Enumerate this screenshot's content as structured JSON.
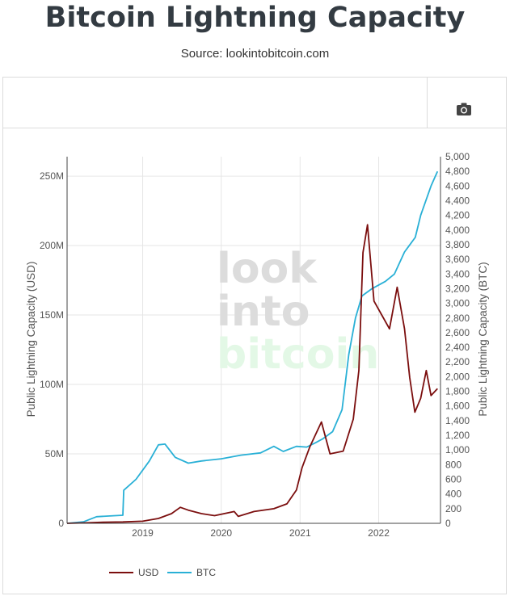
{
  "header": {
    "title": "Bitcoin Lightning Capacity",
    "source": "Source: lookintobitcoin.com"
  },
  "toolbar": {
    "camera_icon": "camera-icon"
  },
  "watermark": {
    "line1": "look",
    "line2": "into",
    "line3": "bitcoin"
  },
  "colors": {
    "usd": "#7b0e0e",
    "btc": "#29b0d6",
    "grid": "#e6e6e6",
    "watermark_grey": "#dcdcdc",
    "watermark_green": "#e3f8e6"
  },
  "chart_data": {
    "type": "line",
    "title": "Bitcoin Lightning Capacity",
    "ylabel": "Public Lightning Capacity (USD)",
    "y2label": "Public Lightning Capacity (BTC)",
    "xlim": [
      "2018-01-15",
      "2022-10-15"
    ],
    "ylim": [
      0,
      264000000
    ],
    "y2lim": [
      0,
      5000
    ],
    "x_ticks": [
      "2019",
      "2020",
      "2021",
      "2022"
    ],
    "y_ticks": [
      {
        "v": 0,
        "t": "0"
      },
      {
        "v": 50000000,
        "t": "50M"
      },
      {
        "v": 100000000,
        "t": "100M"
      },
      {
        "v": 150000000,
        "t": "150M"
      },
      {
        "v": 200000000,
        "t": "200M"
      },
      {
        "v": 250000000,
        "t": "250M"
      }
    ],
    "y2_ticks": [
      0,
      200,
      400,
      600,
      800,
      1000,
      1200,
      1400,
      1600,
      1800,
      2000,
      2200,
      2400,
      2600,
      2800,
      3000,
      3200,
      3400,
      3600,
      3800,
      4000,
      4200,
      4400,
      4600,
      4800,
      5000
    ],
    "legend": [
      "USD",
      "BTC"
    ],
    "grid": true,
    "series": [
      {
        "name": "USD",
        "axis": "left",
        "points": [
          [
            "2018-01-15",
            0
          ],
          [
            "2018-04-01",
            300000
          ],
          [
            "2018-07-01",
            800000
          ],
          [
            "2018-10-01",
            1000000
          ],
          [
            "2019-01-01",
            1500000
          ],
          [
            "2019-03-15",
            3500000
          ],
          [
            "2019-05-15",
            7000000
          ],
          [
            "2019-06-25",
            11500000
          ],
          [
            "2019-08-01",
            9500000
          ],
          [
            "2019-10-01",
            7000000
          ],
          [
            "2019-12-01",
            5500000
          ],
          [
            "2020-03-01",
            8500000
          ],
          [
            "2020-03-20",
            5000000
          ],
          [
            "2020-06-01",
            8500000
          ],
          [
            "2020-09-01",
            10500000
          ],
          [
            "2020-11-01",
            14000000
          ],
          [
            "2020-12-15",
            24000000
          ],
          [
            "2021-01-10",
            40000000
          ],
          [
            "2021-02-15",
            55000000
          ],
          [
            "2021-04-10",
            73000000
          ],
          [
            "2021-05-20",
            50000000
          ],
          [
            "2021-07-20",
            52000000
          ],
          [
            "2021-09-05",
            75000000
          ],
          [
            "2021-10-01",
            110000000
          ],
          [
            "2021-10-20",
            195000000
          ],
          [
            "2021-11-10",
            215000000
          ],
          [
            "2021-12-10",
            160000000
          ],
          [
            "2022-01-15",
            150000000
          ],
          [
            "2022-02-20",
            140000000
          ],
          [
            "2022-03-28",
            170000000
          ],
          [
            "2022-05-01",
            140000000
          ],
          [
            "2022-05-25",
            105000000
          ],
          [
            "2022-06-18",
            80000000
          ],
          [
            "2022-07-15",
            90000000
          ],
          [
            "2022-08-10",
            110000000
          ],
          [
            "2022-09-01",
            92000000
          ],
          [
            "2022-10-01",
            97000000
          ]
        ]
      },
      {
        "name": "BTC",
        "axis": "right",
        "points": [
          [
            "2018-01-15",
            0
          ],
          [
            "2018-04-01",
            20
          ],
          [
            "2018-06-01",
            90
          ],
          [
            "2018-08-01",
            100
          ],
          [
            "2018-10-01",
            110
          ],
          [
            "2018-10-05",
            450
          ],
          [
            "2018-12-01",
            600
          ],
          [
            "2019-02-01",
            850
          ],
          [
            "2019-03-15",
            1070
          ],
          [
            "2019-04-15",
            1080
          ],
          [
            "2019-06-01",
            900
          ],
          [
            "2019-08-01",
            820
          ],
          [
            "2019-10-01",
            850
          ],
          [
            "2020-01-01",
            880
          ],
          [
            "2020-04-01",
            930
          ],
          [
            "2020-07-01",
            960
          ],
          [
            "2020-09-01",
            1050
          ],
          [
            "2020-10-15",
            980
          ],
          [
            "2020-12-15",
            1050
          ],
          [
            "2021-02-01",
            1040
          ],
          [
            "2021-03-15",
            1100
          ],
          [
            "2021-04-15",
            1150
          ],
          [
            "2021-06-01",
            1250
          ],
          [
            "2021-07-15",
            1550
          ],
          [
            "2021-08-15",
            2300
          ],
          [
            "2021-09-15",
            2800
          ],
          [
            "2021-10-15",
            3100
          ],
          [
            "2021-12-01",
            3200
          ],
          [
            "2022-02-01",
            3300
          ],
          [
            "2022-03-15",
            3400
          ],
          [
            "2022-05-01",
            3700
          ],
          [
            "2022-06-20",
            3900
          ],
          [
            "2022-07-15",
            4200
          ],
          [
            "2022-09-01",
            4600
          ],
          [
            "2022-10-01",
            4800
          ]
        ]
      }
    ]
  }
}
